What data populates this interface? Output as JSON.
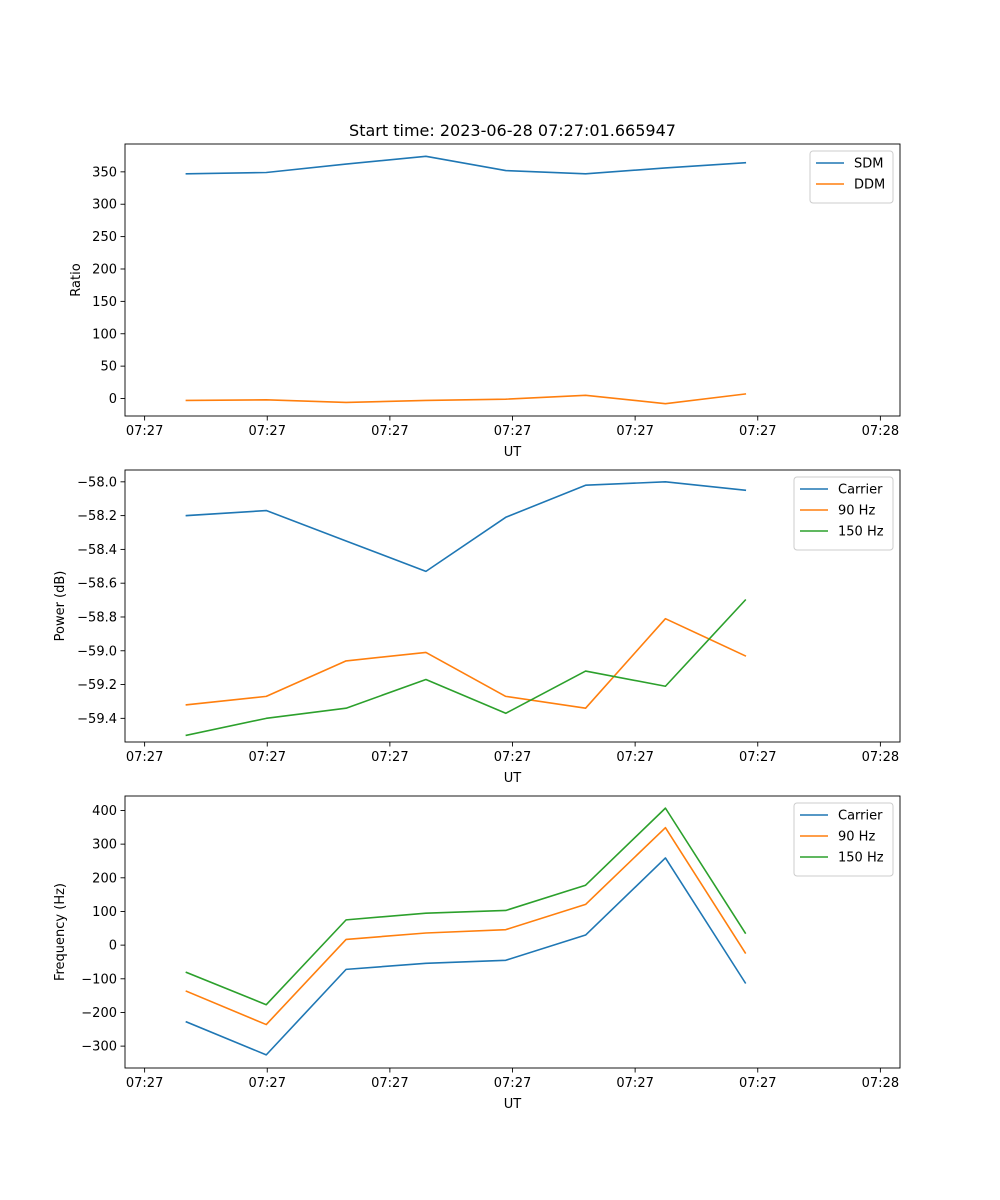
{
  "title": "Start time: 2023-06-28 07:27:01.665947",
  "colors": {
    "c0": "#1f77b4",
    "c1": "#ff7f0e",
    "c2": "#2ca02c"
  },
  "chart_data": [
    {
      "type": "line",
      "title": "Start time: 2023-06-28 07:27:01.665947",
      "xlabel": "UT",
      "ylabel": "Ratio",
      "x_ticks": [
        "07:27",
        "07:27",
        "07:27",
        "07:27",
        "07:27",
        "07:27",
        "07:28"
      ],
      "xlim": [
        0,
        6.15
      ],
      "x": [
        0.5,
        1.15,
        1.8,
        2.45,
        3.1,
        3.75,
        4.4,
        5.05
      ],
      "ylim": [
        -27,
        393
      ],
      "y_ticks": [
        0,
        50,
        100,
        150,
        200,
        250,
        300,
        350
      ],
      "grid": false,
      "legend_position": "upper right",
      "series": [
        {
          "name": "SDM",
          "color": "#1f77b4",
          "values": [
            347,
            349,
            362,
            374,
            352,
            347,
            356,
            364
          ]
        },
        {
          "name": "DDM",
          "color": "#ff7f0e",
          "values": [
            -3,
            -2,
            -6,
            -3,
            -1,
            5,
            -8,
            7
          ]
        }
      ]
    },
    {
      "type": "line",
      "xlabel": "UT",
      "ylabel": "Power (dB)",
      "x_ticks": [
        "07:27",
        "07:27",
        "07:27",
        "07:27",
        "07:27",
        "07:27",
        "07:28"
      ],
      "xlim": [
        0,
        6.15
      ],
      "x": [
        0.5,
        1.15,
        1.8,
        2.45,
        3.1,
        3.75,
        4.4,
        5.05
      ],
      "ylim": [
        -59.54,
        -57.93
      ],
      "y_ticks": [
        -59.4,
        -59.2,
        -59.0,
        -58.8,
        -58.6,
        -58.4,
        -58.2,
        -58.0
      ],
      "y_tick_labels": [
        "−59.4",
        "−59.2",
        "−59.0",
        "−58.8",
        "−58.6",
        "−58.4",
        "−58.2",
        "−58.0"
      ],
      "grid": false,
      "legend_position": "upper right",
      "series": [
        {
          "name": "Carrier",
          "color": "#1f77b4",
          "values": [
            -58.2,
            -58.17,
            -58.35,
            -58.53,
            -58.21,
            -58.02,
            -58.0,
            -58.05
          ]
        },
        {
          "name": "90 Hz",
          "color": "#ff7f0e",
          "values": [
            -59.32,
            -59.27,
            -59.06,
            -59.01,
            -59.27,
            -59.34,
            -58.81,
            -59.03
          ]
        },
        {
          "name": "150 Hz",
          "color": "#2ca02c",
          "values": [
            -59.5,
            -59.4,
            -59.34,
            -59.17,
            -59.37,
            -59.12,
            -59.21,
            -58.7
          ]
        }
      ]
    },
    {
      "type": "line",
      "xlabel": "UT",
      "ylabel": "Frequency (Hz)",
      "x_ticks": [
        "07:27",
        "07:27",
        "07:27",
        "07:27",
        "07:27",
        "07:27",
        "07:28"
      ],
      "xlim": [
        0,
        6.15
      ],
      "x": [
        0.5,
        1.15,
        1.8,
        2.45,
        3.1,
        3.75,
        4.4,
        5.05
      ],
      "ylim": [
        -365,
        443
      ],
      "y_ticks": [
        -300,
        -200,
        -100,
        0,
        100,
        200,
        300,
        400
      ],
      "y_tick_labels": [
        "−300",
        "−200",
        "−100",
        "0",
        "100",
        "200",
        "300",
        "400"
      ],
      "grid": false,
      "legend_position": "upper right",
      "series": [
        {
          "name": "Carrier",
          "color": "#1f77b4",
          "values": [
            -228,
            -326,
            -72,
            -54,
            -45,
            30,
            259,
            -112
          ]
        },
        {
          "name": "90 Hz",
          "color": "#ff7f0e",
          "values": [
            -137,
            -236,
            17,
            36,
            46,
            121,
            349,
            -23
          ]
        },
        {
          "name": "150 Hz",
          "color": "#2ca02c",
          "values": [
            -81,
            -177,
            75,
            95,
            103,
            178,
            407,
            36
          ]
        }
      ]
    }
  ]
}
